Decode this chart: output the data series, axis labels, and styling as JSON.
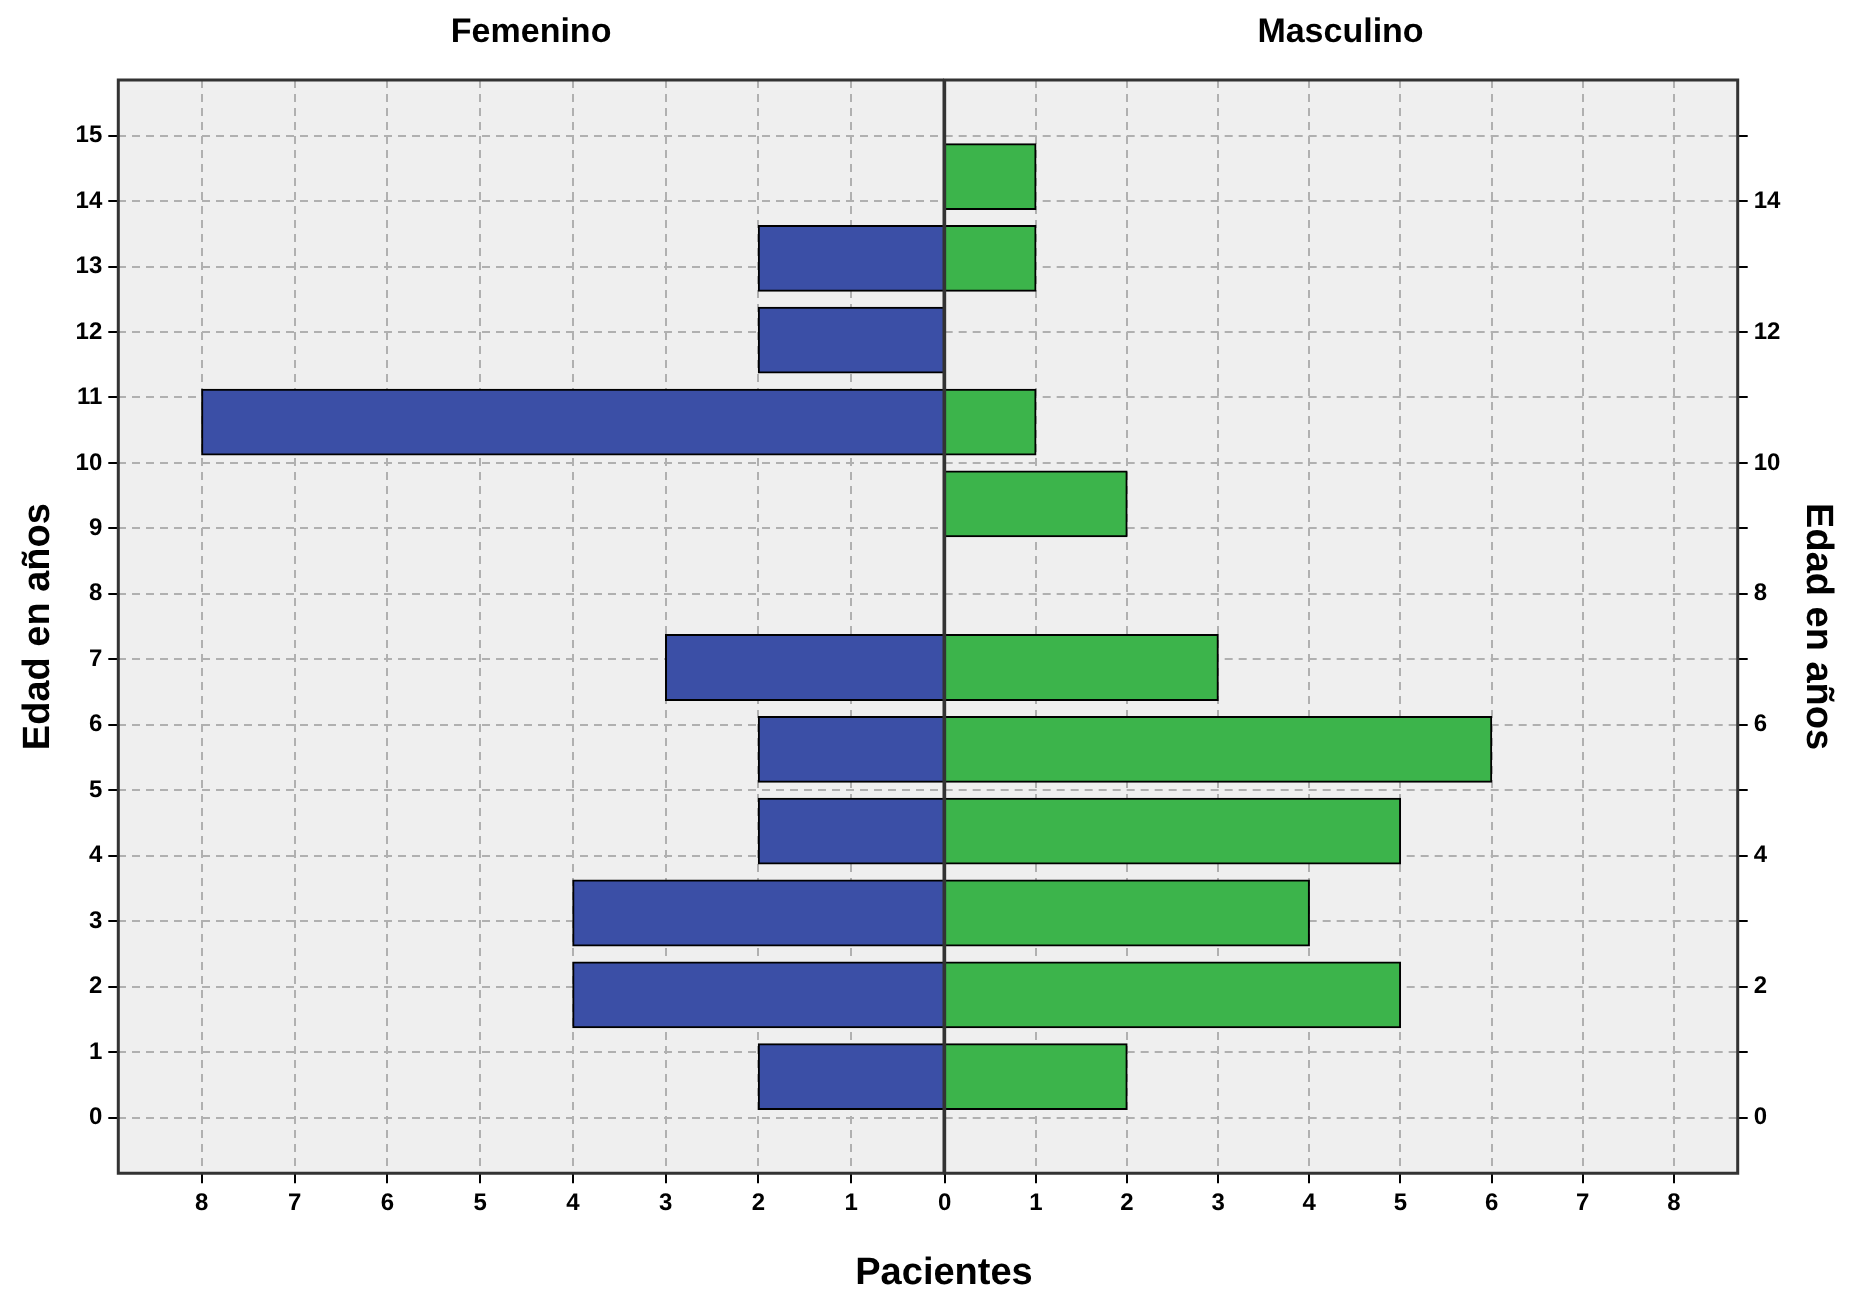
{
  "chart_data": [
    {
      "type": "histogram",
      "orientation": "horizontal",
      "title": "Femenino",
      "xlabel": "Pacientes",
      "ylabel": "Edad en años",
      "bins": [
        0,
        1.25,
        2.5,
        3.75,
        5,
        6.25,
        7.5,
        8.75,
        10,
        11.25,
        12.5,
        13.75,
        15
      ],
      "values": [
        2,
        4,
        4,
        2,
        2,
        3,
        0,
        0,
        8,
        2,
        2,
        0
      ],
      "color": "#3b4fa6",
      "xlim": [
        8.9,
        0
      ],
      "xticks": [
        8,
        7,
        6,
        5,
        4,
        3,
        2,
        1
      ],
      "ylim": [
        -0.85,
        15.85
      ],
      "yticks": [
        0,
        1,
        2,
        3,
        4,
        5,
        6,
        7,
        8,
        9,
        10,
        11,
        12,
        13,
        14,
        15
      ],
      "grid": true
    },
    {
      "type": "histogram",
      "orientation": "horizontal",
      "title": "Masculino",
      "ylabel": "Edad en años",
      "bins": [
        0,
        1.25,
        2.5,
        3.75,
        5,
        6.25,
        7.5,
        8.75,
        10,
        11.25,
        12.5,
        13.75,
        15
      ],
      "values": [
        2,
        5,
        4,
        5,
        6,
        3,
        0,
        2,
        1,
        0,
        1,
        1
      ],
      "color": "#3cb44b",
      "xlim": [
        0,
        8.7
      ],
      "xticks": [
        0,
        1,
        2,
        3,
        4,
        5,
        6,
        7,
        8
      ],
      "ylim": [
        -0.85,
        15.85
      ],
      "yticks": [
        0,
        {
          "value": 1,
          "label": null
        },
        2,
        {
          "value": 3,
          "label": null
        },
        4,
        {
          "value": 5,
          "label": null
        },
        6,
        {
          "value": 7,
          "label": null
        },
        8,
        {
          "value": 9,
          "label": null
        },
        10,
        {
          "value": 11,
          "label": null
        },
        12,
        {
          "value": 13,
          "label": null
        },
        14,
        {
          "value": 15,
          "label": null
        }
      ],
      "grid": true
    }
  ]
}
